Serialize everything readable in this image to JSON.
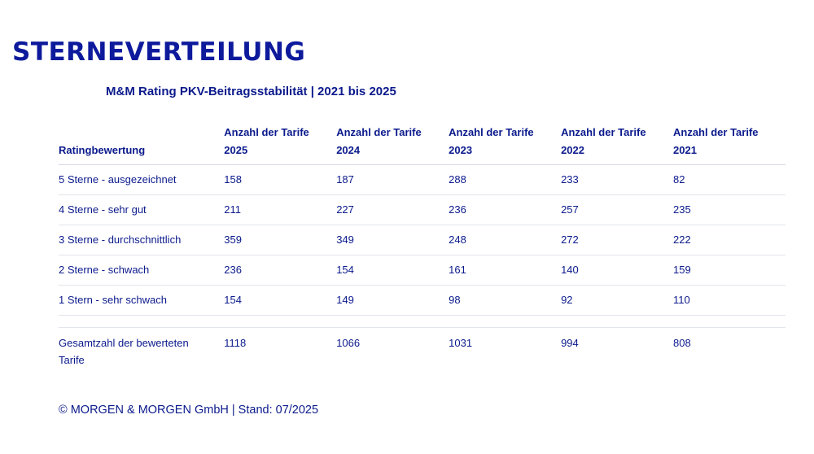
{
  "title": "STERNEVERTEILUNG",
  "subtitle": "M&M Rating PKV-Beitragsstabilität | 2021 bis 2025",
  "table": {
    "headers": [
      {
        "line1": "",
        "line2": "Ratingbewertung"
      },
      {
        "line1": "Anzahl der Tarife",
        "line2": "2025"
      },
      {
        "line1": "Anzahl der Tarife",
        "line2": "2024"
      },
      {
        "line1": "Anzahl der Tarife",
        "line2": "2023"
      },
      {
        "line1": "Anzahl der Tarife",
        "line2": "2022"
      },
      {
        "line1": "Anzahl der Tarife",
        "line2": "2021"
      }
    ],
    "rows": [
      [
        "5 Sterne - ausgezeichnet",
        "158",
        "187",
        "288",
        "233",
        "82"
      ],
      [
        "4 Sterne - sehr gut",
        "211",
        "227",
        "236",
        "257",
        "235"
      ],
      [
        "3 Sterne - durchschnittlich",
        "359",
        "349",
        "248",
        "272",
        "222"
      ],
      [
        "2 Sterne - schwach",
        "236",
        "154",
        "161",
        "140",
        "159"
      ],
      [
        "1 Stern - sehr schwach",
        "154",
        "149",
        "98",
        "92",
        "110"
      ]
    ],
    "total": [
      "Gesamtzahl der bewerteten Tarife",
      "1118",
      "1066",
      "1031",
      "994",
      "808"
    ]
  },
  "footer": "© MORGEN & MORGEN GmbH | Stand: 07/2025"
}
